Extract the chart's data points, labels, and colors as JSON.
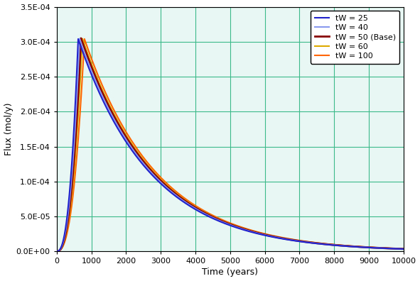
{
  "xlabel": "Time (years)",
  "ylabel": "Flux (mol/y)",
  "xlim": [
    0,
    10000
  ],
  "ylim": [
    0,
    0.00035
  ],
  "yticks": [
    0.0,
    5e-05,
    0.0001,
    0.00015,
    0.0002,
    0.00025,
    0.0003,
    0.00035
  ],
  "xticks": [
    0,
    1000,
    2000,
    3000,
    4000,
    5000,
    6000,
    7000,
    8000,
    9000,
    10000
  ],
  "grid_color": "#3dba8a",
  "background_color": "#ffffff",
  "plot_bg_color": "#e8f7f3",
  "series": [
    {
      "label": "tW = 25",
      "color": "#2222cc",
      "lw": 1.5,
      "zorder": 5,
      "peak_shift": -80,
      "peak_flux": 0.000304
    },
    {
      "label": "tW = 40",
      "color": "#8899ee",
      "lw": 1.5,
      "zorder": 4,
      "peak_shift": -40,
      "peak_flux": 0.0003045
    },
    {
      "label": "tW = 50 (Base)",
      "color": "#880000",
      "lw": 2.0,
      "zorder": 3,
      "peak_shift": 0,
      "peak_flux": 0.000305
    },
    {
      "label": "tW = 60",
      "color": "#ddaa00",
      "lw": 1.5,
      "zorder": 2,
      "peak_shift": 40,
      "peak_flux": 0.0003045
    },
    {
      "label": "tW = 100",
      "color": "#ff6600",
      "lw": 1.5,
      "zorder": 1,
      "peak_shift": 100,
      "peak_flux": 0.000304
    }
  ],
  "base_peak_time": 700,
  "decay_rate": 0.00048,
  "rise_power": 2.5
}
